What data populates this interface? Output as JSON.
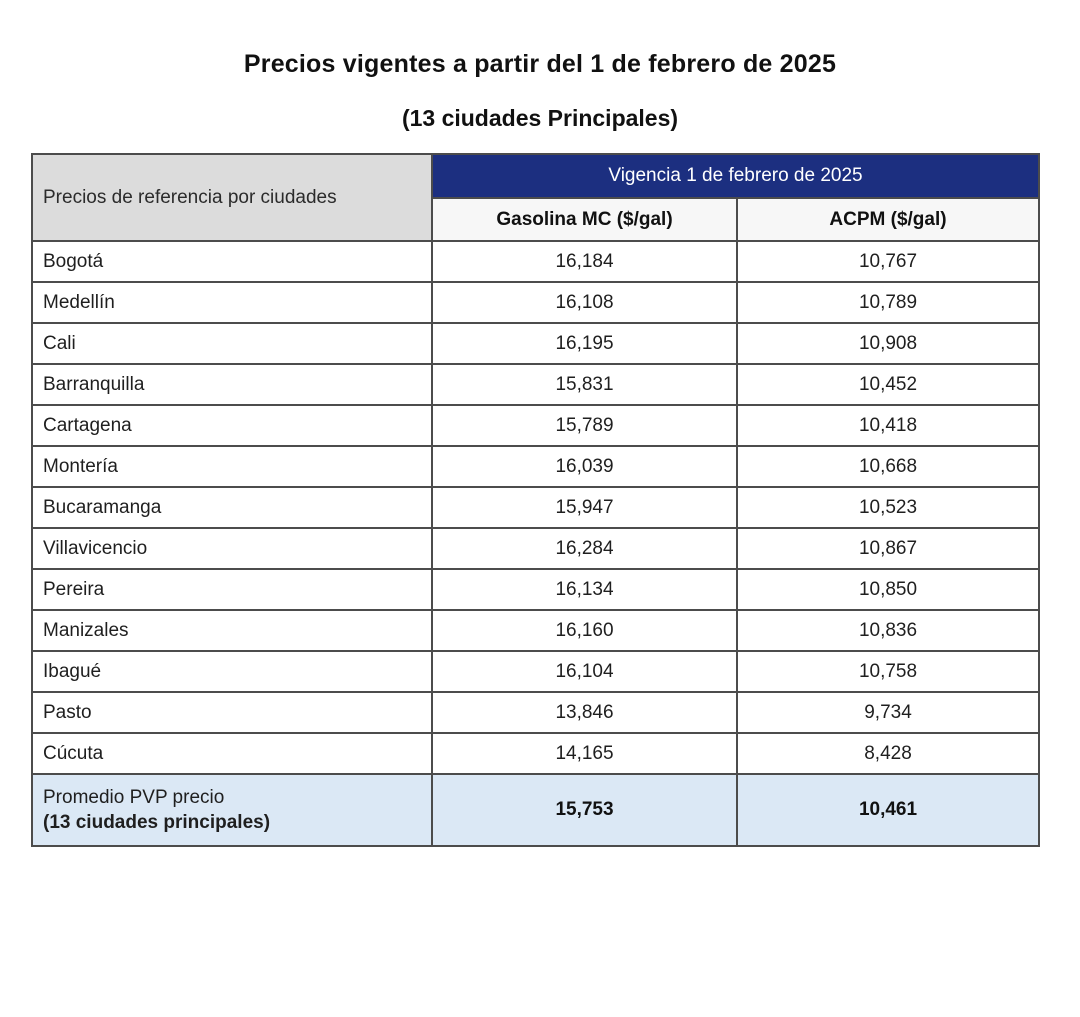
{
  "page": {
    "title": "Precios vigentes a partir del 1 de febrero de 2025",
    "subtitle": "(13 ciudades Principales)"
  },
  "table": {
    "corner_header": "Precios de referencia por ciudades",
    "vigencia_header": "Vigencia 1 de febrero de 2025",
    "columns": {
      "gasolina": "Gasolina MC ($/gal)",
      "acpm": "ACPM ($/gal)"
    },
    "rows": [
      {
        "city": "Bogotá",
        "gasolina": "16,184",
        "acpm": "10,767"
      },
      {
        "city": "Medellín",
        "gasolina": "16,108",
        "acpm": "10,789"
      },
      {
        "city": "Cali",
        "gasolina": "16,195",
        "acpm": "10,908"
      },
      {
        "city": "Barranquilla",
        "gasolina": "15,831",
        "acpm": "10,452"
      },
      {
        "city": "Cartagena",
        "gasolina": "15,789",
        "acpm": "10,418"
      },
      {
        "city": "Montería",
        "gasolina": "16,039",
        "acpm": "10,668"
      },
      {
        "city": "Bucaramanga",
        "gasolina": "15,947",
        "acpm": "10,523"
      },
      {
        "city": "Villavicencio",
        "gasolina": "16,284",
        "acpm": "10,867"
      },
      {
        "city": "Pereira",
        "gasolina": "16,134",
        "acpm": "10,850"
      },
      {
        "city": "Manizales",
        "gasolina": "16,160",
        "acpm": "10,836"
      },
      {
        "city": "Ibagué",
        "gasolina": "16,104",
        "acpm": "10,758"
      },
      {
        "city": "Pasto",
        "gasolina": "13,846",
        "acpm": "9,734"
      },
      {
        "city": "Cúcuta",
        "gasolina": "14,165",
        "acpm": "8,428"
      }
    ],
    "footer": {
      "label_line1": "Promedio PVP precio",
      "label_line2": "(13 ciudades principales)",
      "gasolina": "15,753",
      "acpm": "10,461"
    }
  },
  "colors": {
    "vigencia_header_bg": "#1c2f80",
    "vigencia_header_text": "#ffffff",
    "corner_header_bg": "#dcdcdc",
    "fuel_header_bg": "#f7f7f7",
    "average_row_bg": "#dbe8f5",
    "border": "#4c4c4c",
    "page_bg": "#ffffff",
    "text": "#1a1a1a"
  },
  "chart_data": {
    "type": "table",
    "title": "Precios vigentes a partir del 1 de febrero de 2025 (13 ciudades Principales)",
    "columns": [
      "Precios de referencia por ciudades",
      "Gasolina MC ($/gal)",
      "ACPM ($/gal)"
    ],
    "categories": [
      "Bogotá",
      "Medellín",
      "Cali",
      "Barranquilla",
      "Cartagena",
      "Montería",
      "Bucaramanga",
      "Villavicencio",
      "Pereira",
      "Manizales",
      "Ibagué",
      "Pasto",
      "Cúcuta"
    ],
    "series": [
      {
        "name": "Gasolina MC ($/gal)",
        "values": [
          16184,
          16108,
          16195,
          15831,
          15789,
          16039,
          15947,
          16284,
          16134,
          16160,
          16104,
          13846,
          14165
        ]
      },
      {
        "name": "ACPM ($/gal)",
        "values": [
          10767,
          10789,
          10908,
          10452,
          10418,
          10668,
          10523,
          10867,
          10850,
          10836,
          10758,
          9734,
          8428
        ]
      }
    ],
    "summary_row": {
      "label": "Promedio PVP precio (13 ciudades principales)",
      "gasolina": 15753,
      "acpm": 10461
    }
  }
}
